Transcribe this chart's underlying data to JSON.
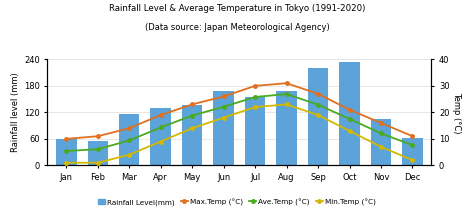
{
  "months": [
    "Jan",
    "Feb",
    "Mar",
    "Apr",
    "May",
    "Jun",
    "Jul",
    "Aug",
    "Sep",
    "Oct",
    "Nov",
    "Dec"
  ],
  "rainfall": [
    59,
    56,
    117,
    130,
    137,
    168,
    154,
    168,
    220,
    234,
    105,
    61
  ],
  "max_temp": [
    10,
    11,
    14,
    19,
    23,
    26,
    30,
    31,
    27,
    21,
    16,
    11
  ],
  "ave_temp": [
    5.4,
    6.1,
    9.4,
    14.3,
    18.8,
    22.1,
    25.8,
    26.9,
    22.9,
    17.5,
    12.1,
    7.6
  ],
  "min_temp": [
    1,
    1,
    4,
    9,
    14,
    18,
    22,
    23,
    19,
    13,
    7,
    2
  ],
  "bar_color": "#5ba3d9",
  "max_color": "#e07020",
  "ave_color": "#4aaa20",
  "min_color": "#d4b800",
  "title_line1": "Rainfall Level & Average Temperature in Tokyo (1991-2020)",
  "title_line2": "(Data source: Japan Meteorological Agency)",
  "ylabel_left": "Rainfall level (mm)",
  "ylabel_right": "Temp (°C)",
  "ylim_left": [
    0,
    240
  ],
  "ylim_right": [
    0,
    40
  ],
  "yticks_left": [
    0,
    60,
    120,
    180,
    240
  ],
  "yticks_right": [
    0,
    10,
    20,
    30,
    40
  ],
  "legend_labels": [
    "Rainfall Level(mm)",
    "Max.Temp (°C)",
    "Ave.Temp (°C)",
    "Min.Temp (°C)"
  ]
}
